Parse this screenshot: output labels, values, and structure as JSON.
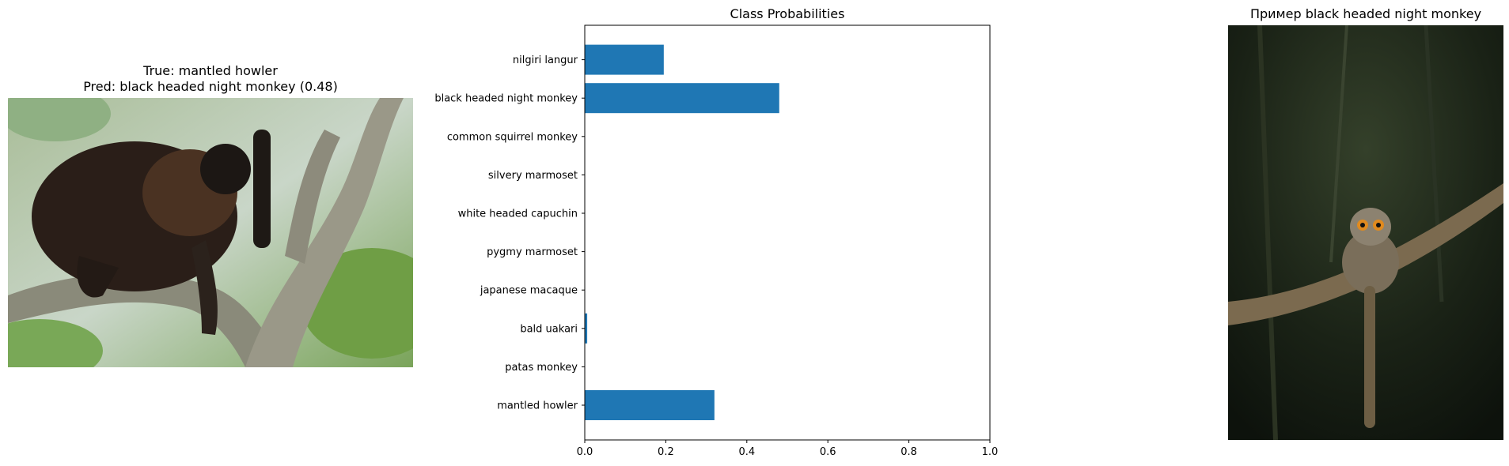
{
  "left_panel": {
    "title_line1": "True: mantled howler",
    "title_line2": "Pred: black headed night monkey (0.48)"
  },
  "right_panel": {
    "title": "Пример black headed night monkey"
  },
  "chart_data": {
    "type": "bar",
    "orientation": "horizontal",
    "title": "Class Probabilities",
    "xlabel": "",
    "ylabel": "",
    "xlim": [
      0,
      1.0
    ],
    "xticks": [
      "0.0",
      "0.2",
      "0.4",
      "0.6",
      "0.8",
      "1.0"
    ],
    "categories": [
      "mantled howler",
      "patas monkey",
      "bald uakari",
      "japanese macaque",
      "pygmy marmoset",
      "white headed capuchin",
      "silvery marmoset",
      "common squirrel monkey",
      "black headed night monkey",
      "nilgiri langur"
    ],
    "values": [
      0.32,
      0.0,
      0.006,
      0.0,
      0.0,
      0.0,
      0.0,
      0.0,
      0.48,
      0.195
    ],
    "bar_color": "#1f77b4",
    "grid": false
  }
}
